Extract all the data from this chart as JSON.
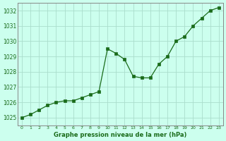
{
  "title": "Graphe pression niveau de la mer (hPa)",
  "x_values": [
    0,
    1,
    2,
    3,
    4,
    5,
    6,
    7,
    8,
    9,
    10,
    11,
    12,
    13,
    14,
    15,
    16,
    17,
    18,
    19,
    20,
    21,
    22,
    23
  ],
  "y_values": [
    1025.0,
    1025.2,
    1025.5,
    1025.8,
    1026.0,
    1026.1,
    1026.1,
    1026.3,
    1026.5,
    1026.7,
    1029.5,
    1029.2,
    1028.8,
    1027.7,
    1027.6,
    1027.6,
    1028.5,
    1029.0,
    1030.0,
    1030.3,
    1031.0,
    1031.5,
    1032.0,
    1032.2
  ],
  "ylim": [
    1024.5,
    1032.5
  ],
  "xlim": [
    -0.5,
    23.5
  ],
  "yticks": [
    1025,
    1026,
    1027,
    1028,
    1029,
    1030,
    1031,
    1032
  ],
  "xticks": [
    0,
    1,
    2,
    3,
    4,
    5,
    6,
    7,
    8,
    9,
    10,
    11,
    12,
    13,
    14,
    15,
    16,
    17,
    18,
    19,
    20,
    21,
    22,
    23
  ],
  "line_color": "#1a6b1a",
  "marker_color": "#1a6b1a",
  "bg_color": "#ccffee",
  "grid_color": "#aaddcc",
  "title_color": "#1a6b1a",
  "axis_label_color": "#1a6b1a",
  "tick_label_color": "#1a6b1a",
  "border_color": "#888888"
}
